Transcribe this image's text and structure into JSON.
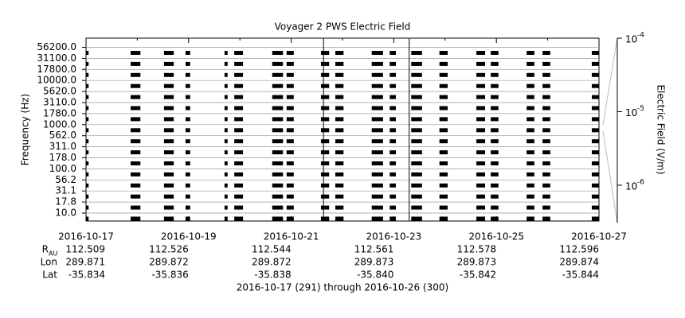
{
  "chart_data": {
    "type": "spectrogram",
    "title": "Voyager 2 PWS Electric Field",
    "subtitle": "2016-10-17 (291) through 2016-10-26 (300)",
    "y_label": "Frequency (Hz)",
    "z_label": "Electric Field (V/m)",
    "channels": [
      "56200.0",
      "31100.0",
      "17800.0",
      "10000.0",
      "5620.0",
      "3110.0",
      "1780.0",
      "1000.0",
      "562.0",
      "311.0",
      "178.0",
      "100.0",
      "56.2",
      "31.1",
      "17.8",
      "10.0"
    ],
    "xlim": [
      0,
      10
    ],
    "xticks": [
      {
        "value": 0,
        "label": "2016-10-17"
      },
      {
        "value": 2,
        "label": "2016-10-19"
      },
      {
        "value": 4,
        "label": "2016-10-21"
      },
      {
        "value": 6,
        "label": "2016-10-23"
      },
      {
        "value": 8,
        "label": "2016-10-25"
      },
      {
        "value": 10,
        "label": "2016-10-27"
      }
    ],
    "xminor": [
      1,
      3,
      5,
      7,
      9
    ],
    "intervals": [
      [
        0,
        0.05
      ],
      [
        0.87,
        1.06
      ],
      [
        1.52,
        1.71
      ],
      [
        1.94,
        2.03
      ],
      [
        2.7,
        2.76
      ],
      [
        2.89,
        3.06
      ],
      [
        3.63,
        3.84
      ],
      [
        3.91,
        4.05
      ],
      [
        4.58,
        4.74
      ],
      [
        4.86,
        5.02
      ],
      [
        5.57,
        5.79
      ],
      [
        5.92,
        6.04
      ],
      [
        6.34,
        6.55
      ],
      [
        6.89,
        7.05
      ],
      [
        7.61,
        7.78
      ],
      [
        7.89,
        8.04
      ],
      [
        8.59,
        8.74
      ],
      [
        8.9,
        9.05
      ],
      [
        9.86,
        10
      ]
    ],
    "vertical_lines": [
      4.63,
      6.3
    ],
    "color": "#000000",
    "zlim": [
      3.1e-07,
      0.0001
    ],
    "zticks": [
      {
        "value": 0.0001,
        "label": "10",
        "exponent": "-4"
      },
      {
        "value": 1e-05,
        "label": "10",
        "exponent": "-5"
      },
      {
        "value": 1e-06,
        "label": "10",
        "exponent": "-6"
      }
    ],
    "ephemeris": {
      "labels": [
        "R",
        "Lon",
        "Lat"
      ],
      "r_subscript": "AU",
      "rows": [
        [
          "112.509",
          "112.526",
          "112.544",
          "112.561",
          "112.578",
          "112.596"
        ],
        [
          "289.871",
          "289.872",
          "289.872",
          "289.873",
          "289.873",
          "289.874"
        ],
        [
          "-35.834",
          "-35.836",
          "-35.838",
          "-35.840",
          "-35.842",
          "-35.844"
        ]
      ]
    }
  }
}
